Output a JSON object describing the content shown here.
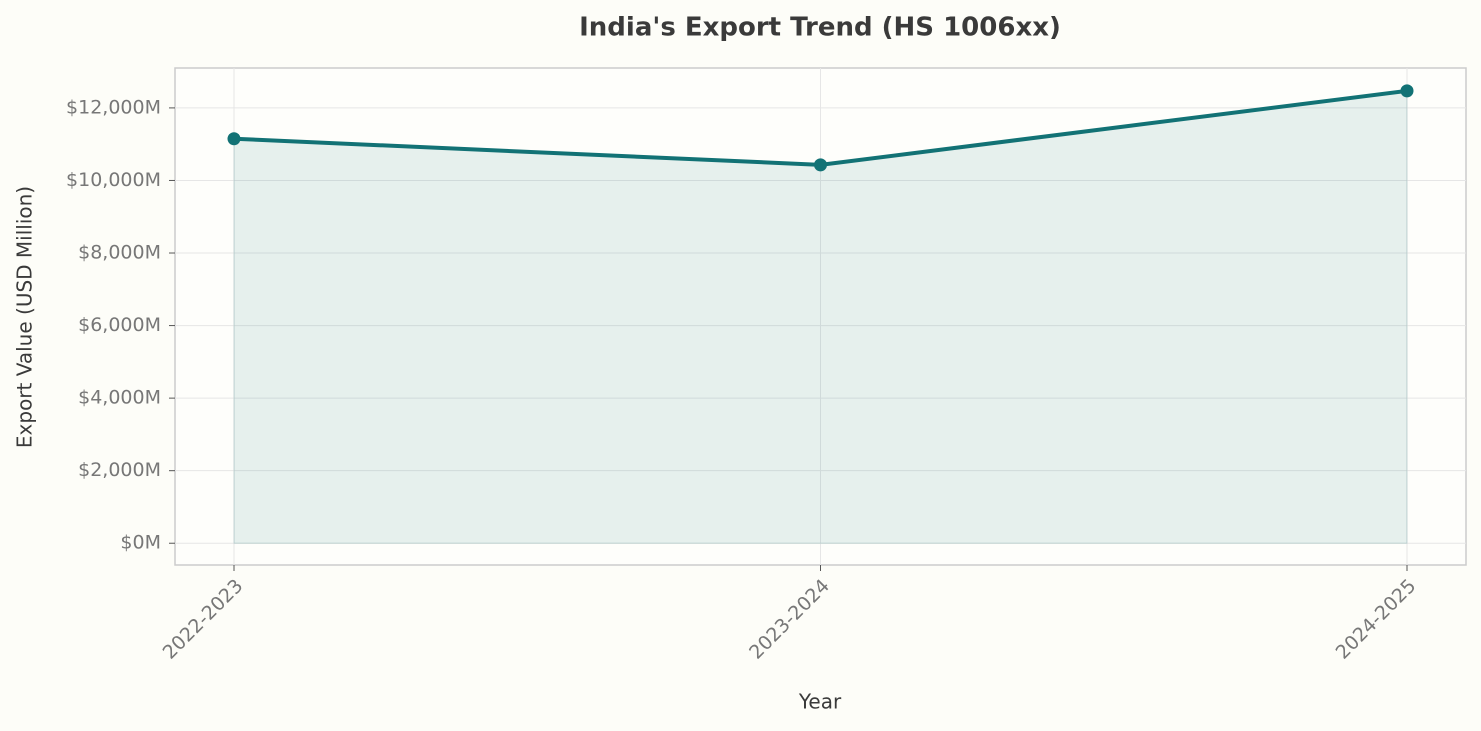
{
  "chart_data": {
    "type": "line",
    "title": "India's Export Trend (HS 1006xx)",
    "x_label": "Year",
    "y_label": "Export Value (USD Million)",
    "categories": [
      "2022-2023",
      "2023-2024",
      "2024-2025"
    ],
    "series": [
      {
        "name": "Export Value",
        "color": "#127275",
        "values": [
          11150,
          10430,
          12470
        ]
      }
    ],
    "fill_area": true,
    "ylim": [
      -600,
      13100
    ],
    "yticks": [
      {
        "value": 0,
        "label": "$0M"
      },
      {
        "value": 2000,
        "label": "$2,000M"
      },
      {
        "value": 4000,
        "label": "$4,000M"
      },
      {
        "value": 6000,
        "label": "$6,000M"
      },
      {
        "value": 8000,
        "label": "$8,000M"
      },
      {
        "value": 10000,
        "label": "$10,000M"
      },
      {
        "value": 12000,
        "label": "$12,000M"
      }
    ],
    "grid": true
  }
}
